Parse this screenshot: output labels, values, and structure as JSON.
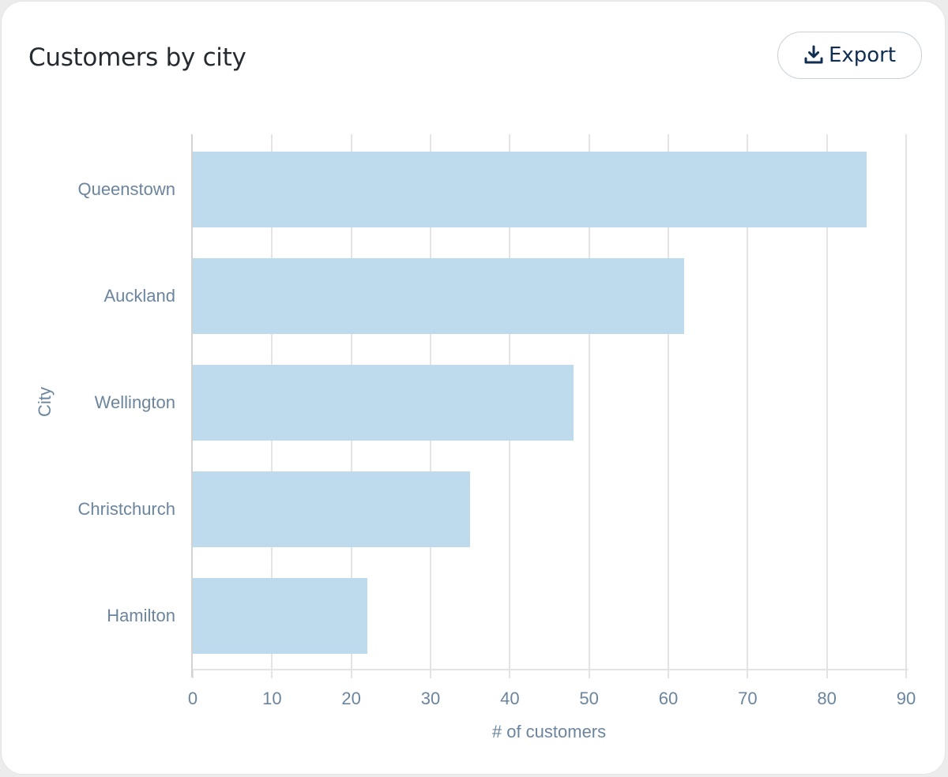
{
  "card": {
    "title": "Customers by city",
    "export_button": {
      "label": "Export",
      "icon": "download-icon"
    }
  },
  "colors": {
    "bar": "#bddbed",
    "axis_text": "#6b859e",
    "title_text": "#262b32",
    "button_text": "#0f2e52",
    "gridline": "#e4e4e4"
  },
  "chart_data": {
    "type": "bar",
    "orientation": "horizontal",
    "title": "Customers by city",
    "xlabel": "# of customers",
    "ylabel": "City",
    "categories": [
      "Queenstown",
      "Auckland",
      "Wellington",
      "Christchurch",
      "Hamilton"
    ],
    "values": [
      85,
      62,
      48,
      35,
      22
    ],
    "xlim": [
      0,
      90
    ],
    "xticks": [
      "0",
      "10",
      "20",
      "30",
      "40",
      "50",
      "60",
      "70",
      "80",
      "90"
    ],
    "grid": "vertical",
    "legend": "none"
  }
}
